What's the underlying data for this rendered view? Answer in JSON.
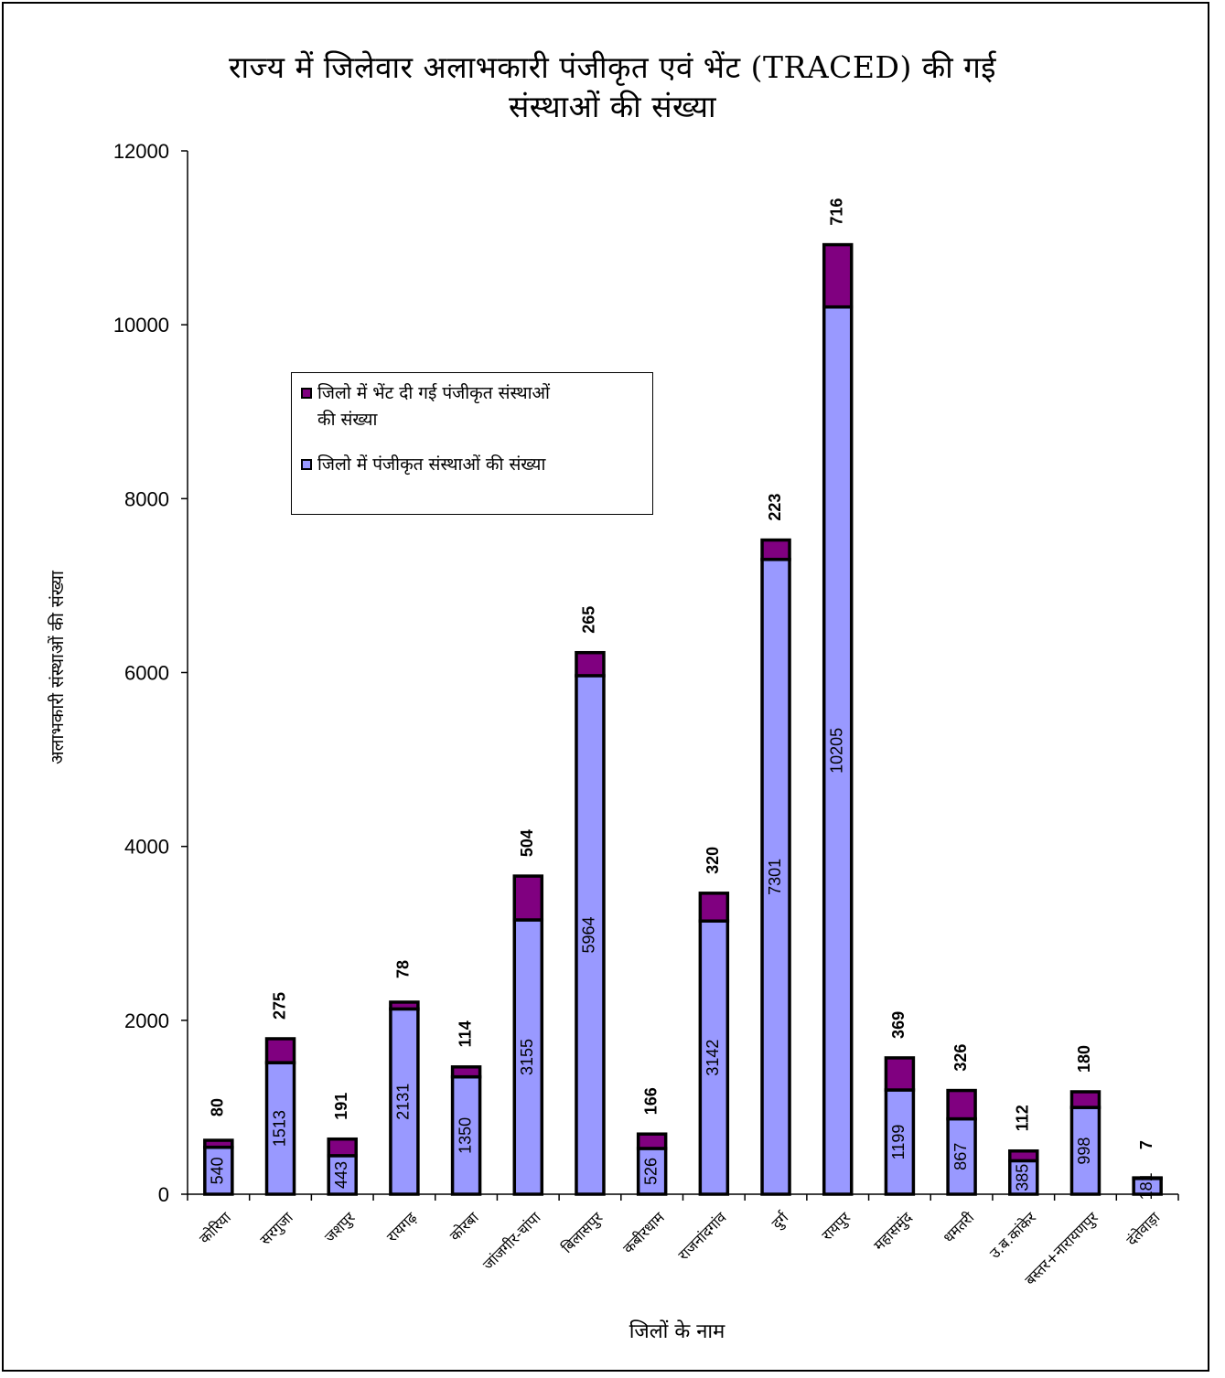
{
  "chart_data": {
    "type": "bar",
    "stacked": true,
    "title": "राज्य में जिलेवार अलाभकारी पंजीकृत एवं भेंट (TRACED) की गई संस्थाओं की संख्या",
    "title_lines": [
      "राज्य में जिलेवार अलाभकारी पंजीकृत एवं भेंट (TRACED) की गई",
      "संस्थाओं की संख्या"
    ],
    "xlabel": "जिलों के नाम",
    "ylabel": "अलाभकारी संस्थाओं की संख्या",
    "ylim": [
      0,
      12000
    ],
    "yticks": [
      0,
      2000,
      4000,
      6000,
      8000,
      10000,
      12000
    ],
    "grid": false,
    "legend_position": "upper-left",
    "categories": [
      "कोरिया",
      "सरगुजा",
      "जशपुर",
      "रायगढ़",
      "कोरबा",
      "जांजगीर-चांपा",
      "बिलासपुर",
      "कबीरधाम",
      "राजनांदगांव",
      "दुर्ग",
      "रायपुर",
      "महासमुंद",
      "धमतरी",
      "उ.ब.कांकेर",
      "बस्तर+नारायणपुर",
      "दंतेवाड़ा"
    ],
    "series": [
      {
        "name": "जिलो में पंजीकृत संस्थाओं की संख्या",
        "color": "#9999ff",
        "values": [
          540,
          1513,
          443,
          2131,
          1350,
          3155,
          5964,
          526,
          3142,
          7301,
          10205,
          1199,
          867,
          385,
          998,
          181
        ]
      },
      {
        "name": "जिलो में भेंट दी गई पंजीकृत संस्थाओं की संख्या",
        "color": "#800080",
        "values": [
          80,
          275,
          191,
          78,
          114,
          504,
          265,
          166,
          320,
          223,
          716,
          369,
          326,
          112,
          180,
          7
        ]
      }
    ],
    "legend_order": [
      1,
      0
    ],
    "legend_lines": [
      [
        "जिलो में भेंट दी गई पंजीकृत संस्थाओं",
        "की संख्या"
      ],
      [
        "जिलो में पंजीकृत संस्थाओं की संख्या"
      ]
    ]
  }
}
